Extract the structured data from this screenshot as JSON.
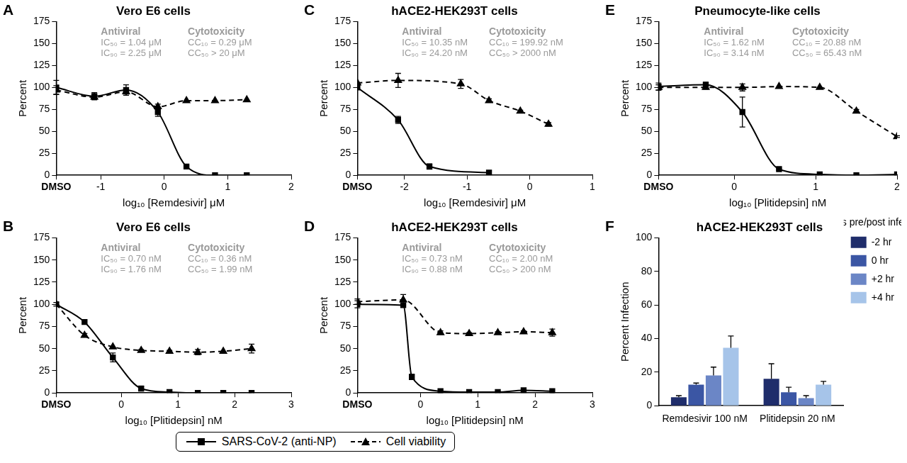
{
  "chart_data": [
    {
      "panel": "A",
      "type": "line",
      "title": "Vero E6 cells",
      "xlabel": "log₁₀ [Remdesivir] μM",
      "ylabel": "Percent",
      "xlim": [
        -1.7,
        2
      ],
      "xticks": [
        {
          "value": -1.7,
          "label": "DMSO"
        },
        -1,
        0,
        1,
        2
      ],
      "ylim": [
        0,
        175
      ],
      "yticks": [
        0,
        25,
        50,
        75,
        100,
        125,
        150,
        175
      ],
      "grid": false,
      "legend": "bottom",
      "annotations": [
        {
          "header": "Antiviral",
          "lines": [
            "IC₅₀ = 1.04 μM",
            "IC₉₀ = 2.25 μM"
          ]
        },
        {
          "header": "Cytotoxicity",
          "lines": [
            "CC₁₀ = 0.29 μM",
            "CC₅₀ > 20 μM"
          ]
        }
      ],
      "series": [
        {
          "name": "SARS-CoV-2 (anti-NP)",
          "color": "#000000",
          "line_style": "solid",
          "marker": "square",
          "x": [
            -1.7,
            -1.1,
            -0.6,
            -0.1,
            0.35,
            0.8,
            1.3
          ],
          "values": [
            100,
            90,
            97,
            72,
            10,
            0,
            0
          ],
          "errors": [
            8,
            4,
            6,
            5,
            1,
            0,
            0
          ]
        },
        {
          "name": "Cell viability",
          "color": "#000000",
          "line_style": "dashed",
          "marker": "triangle",
          "x": [
            -1.7,
            -1.1,
            -0.6,
            -0.1,
            0.35,
            0.8,
            1.3
          ],
          "values": [
            97,
            89,
            95,
            78,
            85,
            85,
            86
          ],
          "errors": [
            5,
            3,
            4,
            3,
            0,
            0,
            0
          ]
        }
      ]
    },
    {
      "panel": "B",
      "type": "line",
      "title": "Vero E6 cells",
      "xlabel": "log₁₀ [Plitidepsin] nM",
      "ylabel": "Percent",
      "xlim": [
        -1.15,
        3
      ],
      "xticks": [
        {
          "value": -1.15,
          "label": "DMSO"
        },
        0,
        1,
        2,
        3
      ],
      "ylim": [
        0,
        175
      ],
      "yticks": [
        0,
        25,
        50,
        75,
        100,
        125,
        150,
        175
      ],
      "grid": false,
      "legend": "bottom",
      "annotations": [
        {
          "header": "Antiviral",
          "lines": [
            "IC₅₀ = 0.70 nM",
            "IC₉₀ = 1.76 nM"
          ]
        },
        {
          "header": "Cytotoxicity",
          "lines": [
            "CC₁₀ = 0.36 nM",
            "CC₅₀ = 1.99 nM"
          ]
        }
      ],
      "series": [
        {
          "name": "SARS-CoV-2 (anti-NP)",
          "color": "#000000",
          "line_style": "solid",
          "marker": "square",
          "x": [
            -1.15,
            -0.65,
            -0.15,
            0.35,
            0.85,
            1.35,
            1.8,
            2.3
          ],
          "values": [
            100,
            80,
            40,
            5,
            1,
            0,
            0,
            0
          ],
          "errors": [
            2,
            0,
            5,
            2,
            0,
            0,
            0,
            0
          ]
        },
        {
          "name": "Cell viability",
          "color": "#000000",
          "line_style": "dashed",
          "marker": "triangle",
          "x": [
            -1.15,
            -0.65,
            -0.15,
            0.35,
            0.85,
            1.35,
            1.8,
            2.3
          ],
          "values": [
            100,
            65,
            52,
            48,
            47,
            46,
            47,
            50
          ],
          "errors": [
            0,
            2,
            0,
            1,
            1,
            3,
            0,
            5
          ]
        }
      ]
    },
    {
      "panel": "C",
      "type": "line",
      "title": "hACE2-HEK293T cells",
      "xlabel": "log₁₀ [Remdesivir] μM",
      "ylabel": "Percent",
      "xlim": [
        -2.75,
        1
      ],
      "xticks": [
        {
          "value": -2.75,
          "label": "DMSO"
        },
        -2,
        -1,
        0,
        1
      ],
      "ylim": [
        0,
        175
      ],
      "yticks": [
        0,
        25,
        50,
        75,
        100,
        125,
        150,
        175
      ],
      "grid": false,
      "legend": "bottom",
      "annotations": [
        {
          "header": "Antiviral",
          "lines": [
            "IC₅₀ = 10.35 nM",
            "IC₉₀ = 24.20 nM"
          ]
        },
        {
          "header": "Cytotoxicity",
          "lines": [
            "CC₁₀ = 199.92 nM",
            "CC₅₀ > 2000 nM"
          ]
        }
      ],
      "series": [
        {
          "name": "SARS-CoV-2 (anti-NP)",
          "color": "#000000",
          "line_style": "solid",
          "marker": "square",
          "x": [
            -2.75,
            -2.1,
            -1.6,
            -0.65
          ],
          "values": [
            100,
            63,
            10,
            3
          ],
          "errors": [
            0,
            4,
            3,
            2
          ]
        },
        {
          "name": "Cell viability",
          "color": "#000000",
          "line_style": "dashed",
          "marker": "triangle",
          "x": [
            -2.75,
            -2.1,
            -1.1,
            -0.65,
            -0.15,
            0.3
          ],
          "values": [
            105,
            108,
            104,
            85,
            73,
            58
          ],
          "errors": [
            0,
            8,
            5,
            2,
            1,
            2
          ]
        }
      ]
    },
    {
      "panel": "D",
      "type": "line",
      "title": "hACE2-HEK293T cells",
      "xlabel": "log₁₀ [Plitidepsin] nM",
      "ylabel": "Percent",
      "xlim": [
        -1.1,
        3
      ],
      "xticks": [
        {
          "value": -1.1,
          "label": "DMSO"
        },
        0,
        1,
        2,
        3
      ],
      "ylim": [
        0,
        175
      ],
      "yticks": [
        0,
        25,
        50,
        75,
        100,
        125,
        150,
        175
      ],
      "grid": false,
      "legend": "bottom",
      "annotations": [
        {
          "header": "Antiviral",
          "lines": [
            "IC₅₀ = 0.73 nM",
            "IC₉₀ = 0.88 nM"
          ]
        },
        {
          "header": "Cytotoxicity",
          "lines": [
            "CC₁₀ = 2.00 nM",
            "CC₅₀ > 200 nM"
          ]
        }
      ],
      "series": [
        {
          "name": "SARS-CoV-2 (anti-NP)",
          "color": "#000000",
          "line_style": "solid",
          "marker": "square",
          "x": [
            -1.1,
            -0.3,
            -0.15,
            0.35,
            0.85,
            1.35,
            1.8,
            2.3
          ],
          "values": [
            100,
            99,
            18,
            2,
            1,
            1,
            3,
            2
          ],
          "errors": [
            4,
            0,
            3,
            0,
            0,
            0,
            1,
            0
          ]
        },
        {
          "name": "Cell viability",
          "color": "#000000",
          "line_style": "dashed",
          "marker": "triangle",
          "x": [
            -1.1,
            -0.3,
            0.35,
            0.85,
            1.35,
            1.8,
            2.3
          ],
          "values": [
            103,
            105,
            68,
            67,
            68,
            69,
            68
          ],
          "errors": [
            3,
            6,
            2,
            1,
            1,
            1,
            4
          ]
        }
      ]
    },
    {
      "panel": "E",
      "type": "line",
      "title": "Pneumocyte-like cells",
      "xlabel": "log₁₀ [Plitidepsin] nM",
      "ylabel": "Percent",
      "xlim": [
        -0.93,
        2
      ],
      "xticks": [
        {
          "value": -0.93,
          "label": "DMSO"
        },
        0,
        1,
        2
      ],
      "ylim": [
        0,
        175
      ],
      "yticks": [
        0,
        25,
        50,
        75,
        100,
        125,
        150,
        175
      ],
      "grid": false,
      "legend": "bottom",
      "annotations": [
        {
          "header": "Antiviral",
          "lines": [
            "IC₅₀ = 1.62 nM",
            "IC₉₀ = 3.14 nM"
          ]
        },
        {
          "header": "Cytotoxicity",
          "lines": [
            "CC₁₀ = 20.88 nM",
            "CC₅₀ = 65.43 nM"
          ]
        }
      ],
      "series": [
        {
          "name": "SARS-CoV-2 (anti-NP)",
          "color": "#000000",
          "line_style": "solid",
          "marker": "square",
          "x": [
            -0.93,
            -0.35,
            0.1,
            0.55,
            1.05,
            1.5,
            2
          ],
          "values": [
            101,
            103,
            72,
            7,
            1,
            0,
            1
          ],
          "errors": [
            4,
            3,
            17,
            1,
            0,
            0,
            0
          ]
        },
        {
          "name": "Cell viability",
          "color": "#000000",
          "line_style": "dashed",
          "marker": "triangle",
          "x": [
            -0.93,
            -0.35,
            0.1,
            0.55,
            1.05,
            1.5,
            2
          ],
          "values": [
            100,
            100,
            100,
            101,
            100,
            73,
            44
          ],
          "errors": [
            3,
            2,
            4,
            0,
            0,
            2,
            1
          ]
        }
      ]
    },
    {
      "panel": "F",
      "type": "bar",
      "title": "hACE2-HEK293T cells",
      "ylabel": "Percent Infection",
      "categories": [
        "Remdesivir 100 nM",
        "Plitidepsin 20 nM"
      ],
      "ylim": [
        0,
        100
      ],
      "yticks": [
        0,
        20,
        40,
        60,
        80,
        100
      ],
      "grid": false,
      "legend": "upper right",
      "legend_title": "Hours pre/post infection",
      "series": [
        {
          "name": "-2 hr",
          "color": "#1f2d6b",
          "values": [
            5,
            16
          ],
          "errors": [
            1,
            9
          ]
        },
        {
          "name": "0 hr",
          "color": "#3b56a4",
          "values": [
            12.5,
            8
          ],
          "errors": [
            1,
            3
          ]
        },
        {
          "name": "+2 hr",
          "color": "#6b86c6",
          "values": [
            18,
            4.5
          ],
          "errors": [
            5,
            1.5
          ]
        },
        {
          "name": "+4 hr",
          "color": "#a6c4e9",
          "values": [
            34.5,
            12.5
          ],
          "errors": [
            7,
            2
          ]
        }
      ]
    }
  ]
}
